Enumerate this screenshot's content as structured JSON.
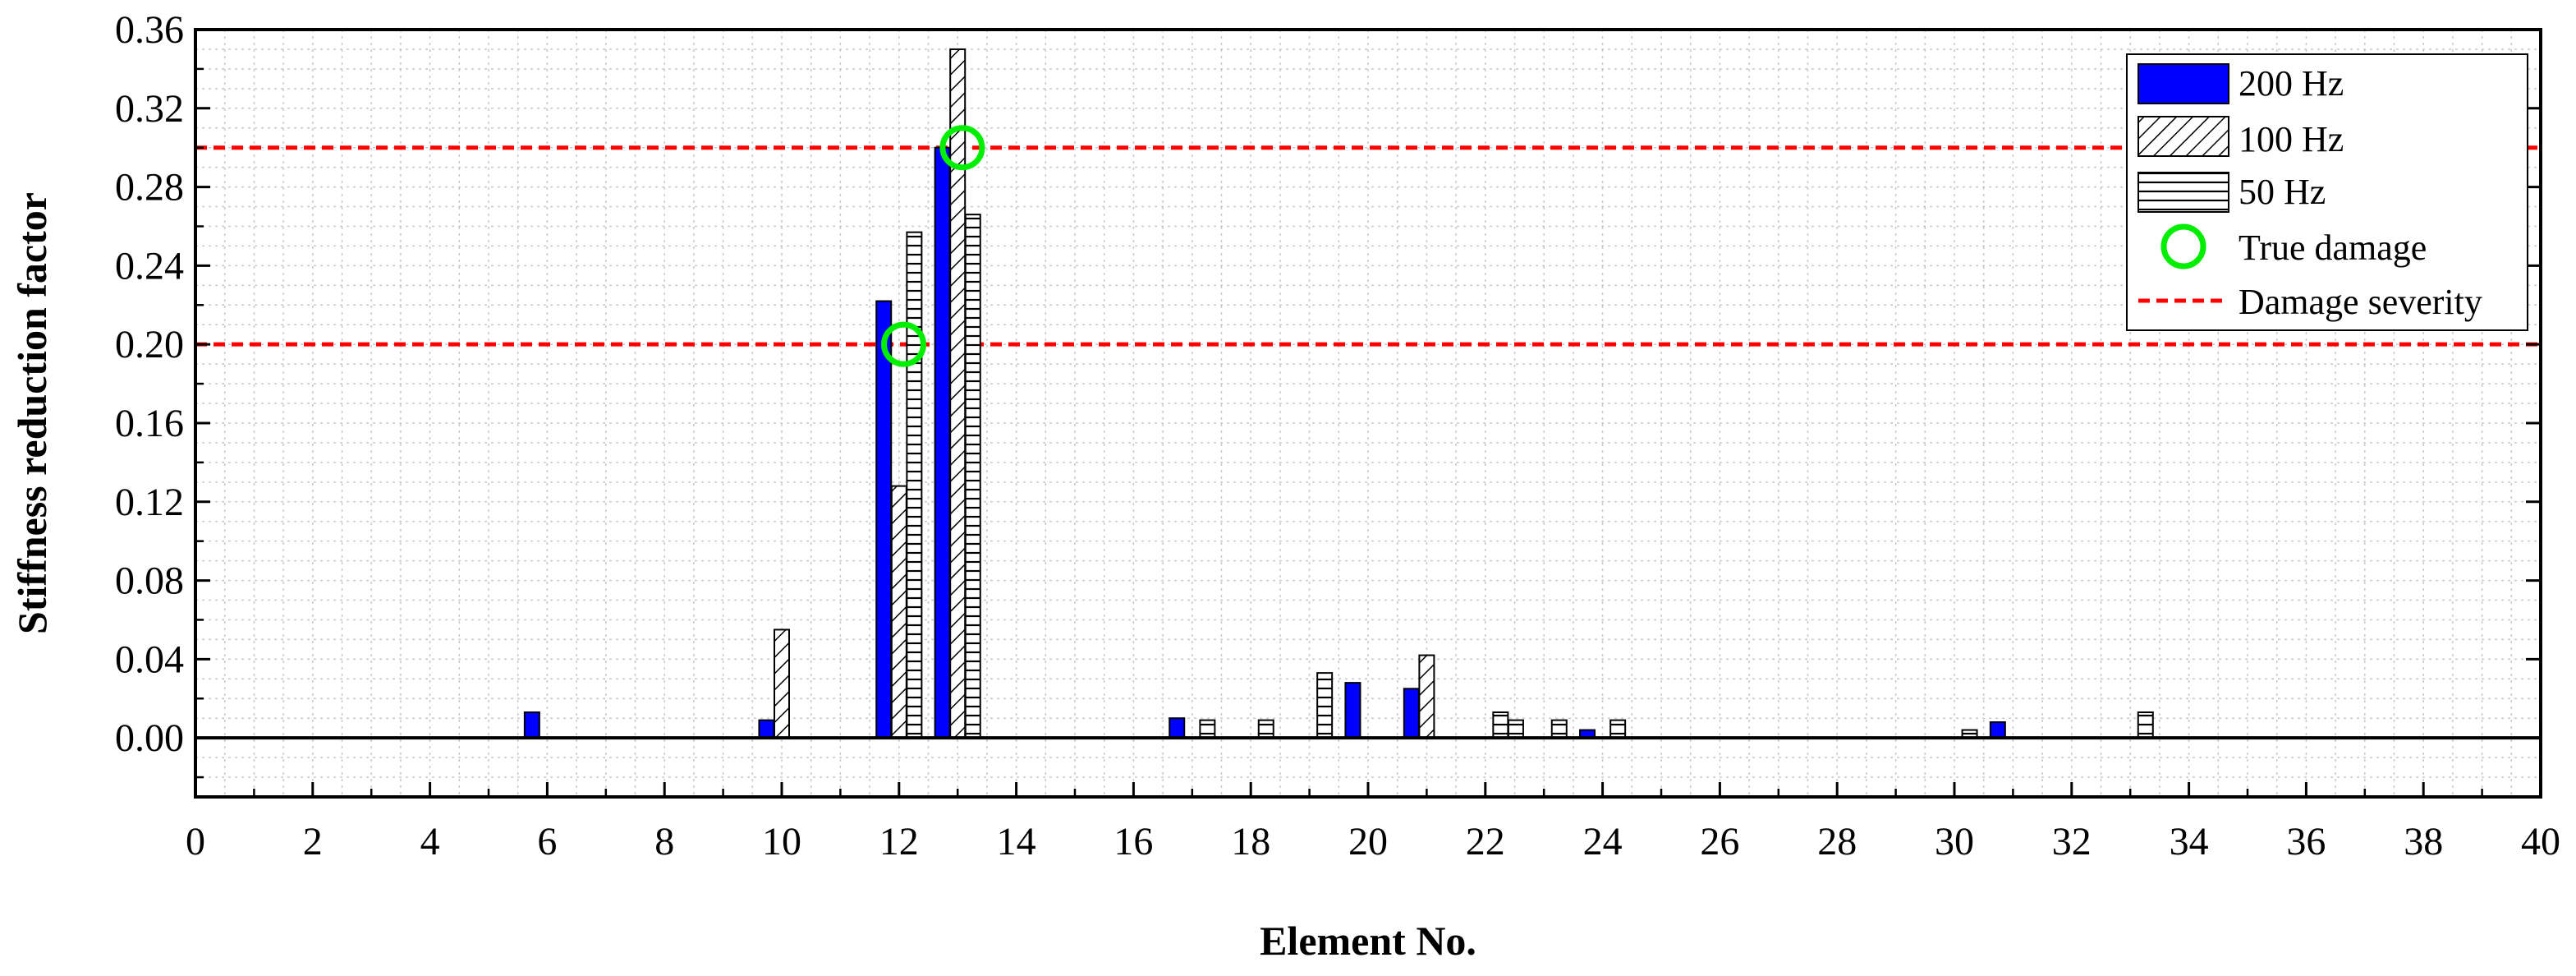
{
  "chart_data": {
    "type": "bar",
    "xlabel": "Element No.",
    "ylabel": "Stiffness reduction factor",
    "xlim": [
      0,
      40
    ],
    "ylim": [
      -0.03,
      0.36
    ],
    "x_ticks": [
      "0",
      "2",
      "4",
      "6",
      "8",
      "10",
      "12",
      "14",
      "16",
      "18",
      "20",
      "22",
      "24",
      "26",
      "28",
      "30",
      "32",
      "34",
      "36",
      "38",
      "40"
    ],
    "y_ticks": [
      "0.00",
      "0.04",
      "0.08",
      "0.12",
      "0.16",
      "0.20",
      "0.24",
      "0.28",
      "0.32",
      "0.36"
    ],
    "grid": true,
    "legend_position": "top-right",
    "series": [
      {
        "name": "200 Hz",
        "pattern": "solid",
        "points": [
          [
            6,
            0.013
          ],
          [
            10,
            0.009
          ],
          [
            12,
            0.222
          ],
          [
            13,
            0.3
          ],
          [
            17,
            0.01
          ],
          [
            20,
            0.028
          ],
          [
            21,
            0.025
          ],
          [
            24,
            0.004
          ],
          [
            31,
            0.008
          ]
        ]
      },
      {
        "name": "100 Hz",
        "pattern": "diagonal",
        "points": [
          [
            10,
            0.055
          ],
          [
            12,
            0.128
          ],
          [
            13,
            0.35
          ],
          [
            21,
            0.042
          ]
        ]
      },
      {
        "name": "50 Hz",
        "pattern": "horizontal",
        "points": [
          [
            12,
            0.257
          ],
          [
            13,
            0.266
          ],
          [
            17,
            0.009
          ],
          [
            18,
            0.009
          ],
          [
            19,
            0.033
          ],
          [
            22,
            0.013
          ],
          [
            22,
            0.009
          ],
          [
            23,
            0.009
          ],
          [
            24,
            0.009
          ],
          [
            30,
            0.004
          ],
          [
            33,
            0.013
          ]
        ]
      }
    ],
    "true_damage": {
      "name": "True damage",
      "color": "#00ee00",
      "points": [
        [
          12,
          0.2
        ],
        [
          13,
          0.3
        ]
      ]
    },
    "damage_severity": {
      "name": "Damage severity",
      "color": "#ff0000",
      "values": [
        0.2,
        0.3
      ]
    }
  }
}
